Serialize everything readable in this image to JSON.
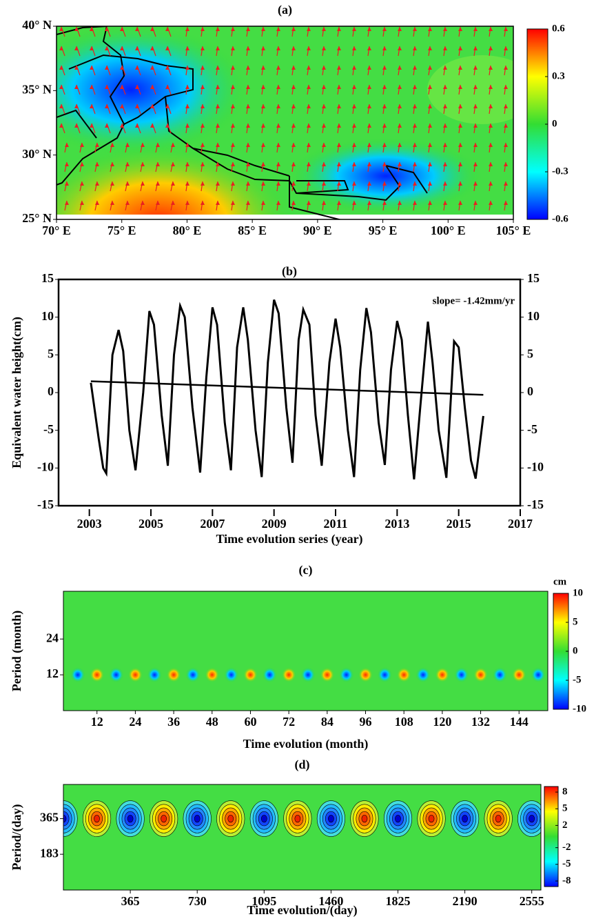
{
  "chart_data": [
    {
      "type": "map",
      "title": "(a)",
      "xlim": [
        70,
        105
      ],
      "ylim": [
        25,
        40
      ],
      "xticks": [
        {
          "value": 70,
          "label": "70° E"
        },
        {
          "value": 75,
          "label": "75° E"
        },
        {
          "value": 80,
          "label": "80° E"
        },
        {
          "value": 85,
          "label": "85° E"
        },
        {
          "value": 90,
          "label": "90° E"
        },
        {
          "value": 95,
          "label": "95° E"
        },
        {
          "value": 100,
          "label": "100° E"
        },
        {
          "value": 105,
          "label": "105° E"
        }
      ],
      "yticks": [
        {
          "value": 25,
          "label": "25° N"
        },
        {
          "value": 30,
          "label": "30° N"
        },
        {
          "value": 35,
          "label": "35° N"
        },
        {
          "value": 40,
          "label": "40° N"
        }
      ],
      "cbar_lim": [
        -0.6,
        0.6
      ],
      "cbar_ticks": [
        0.6,
        0.3,
        0,
        -0.3,
        -0.6
      ]
    },
    {
      "type": "line",
      "title": "(b)",
      "ylabel": "Equivalent water height(cm)",
      "xlabel": "Time evolution series (year)",
      "annotation": "slope= -1.42mm/yr",
      "color": "#000000",
      "x": [
        2003.05,
        2003.3,
        2003.45,
        2003.55,
        2003.75,
        2003.95,
        2004.1,
        2004.3,
        2004.5,
        2004.75,
        2004.95,
        2005.1,
        2005.35,
        2005.55,
        2005.75,
        2005.95,
        2006.1,
        2006.35,
        2006.6,
        2006.8,
        2007.0,
        2007.15,
        2007.4,
        2007.6,
        2007.8,
        2008.0,
        2008.15,
        2008.4,
        2008.6,
        2008.8,
        2009.0,
        2009.15,
        2009.4,
        2009.6,
        2009.8,
        2009.95,
        2010.15,
        2010.35,
        2010.55,
        2010.8,
        2011.0,
        2011.15,
        2011.4,
        2011.6,
        2011.8,
        2012.0,
        2012.15,
        2012.4,
        2012.6,
        2012.8,
        2013.0,
        2013.15,
        2013.35,
        2013.55,
        2013.75,
        2014.0,
        2014.15,
        2014.35,
        2014.6,
        2014.85,
        2015.0,
        2015.2,
        2015.4,
        2015.55,
        2015.8
      ],
      "values": [
        1.3,
        -6,
        -10,
        -10.7,
        5,
        8.3,
        5.5,
        -5,
        -10.3,
        0,
        10.8,
        9,
        -3,
        -9.7,
        5,
        11.5,
        10,
        -2,
        -10.6,
        2,
        11.3,
        9,
        -4,
        -10.3,
        6,
        11.3,
        7,
        -5,
        -11.2,
        4,
        12.3,
        10.5,
        -2,
        -9.3,
        7,
        11,
        9,
        -3,
        -9.7,
        4,
        9.8,
        6,
        -5,
        -11.2,
        3,
        11.2,
        8,
        -4,
        -9.6,
        3,
        9.5,
        7,
        -3,
        -11.5,
        -2,
        9.4,
        4,
        -5,
        -11.3,
        6.8,
        6,
        -2,
        -9,
        -11.4,
        -3.1
      ],
      "trend": {
        "x": [
          2003.05,
          2015.8
        ],
        "values": [
          1.5,
          -0.3
        ]
      },
      "xlim": [
        2002,
        2017
      ],
      "xticks": [
        2003,
        2005,
        2007,
        2009,
        2011,
        2013,
        2015,
        2017
      ],
      "ylim": [
        -15,
        15
      ],
      "yticks": [
        -15,
        -10,
        -5,
        0,
        5,
        10,
        15
      ],
      "y2lim": [
        -15,
        15
      ],
      "y2ticks": [
        -15,
        -10,
        -5,
        0,
        5,
        10,
        15
      ]
    },
    {
      "type": "heatmap",
      "title": "(c)",
      "ylabel": "Period (month)",
      "xlabel": "Time evolution (month)",
      "cbar_unit": "cm",
      "xlim": [
        1.5,
        153
      ],
      "xticks": [
        12,
        24,
        36,
        48,
        60,
        72,
        84,
        96,
        108,
        120,
        132,
        144
      ],
      "ylim": [
        0,
        40
      ],
      "yticks": [
        12,
        24
      ],
      "cbar_lim": [
        -10,
        10
      ],
      "cbar_ticks": [
        10,
        5,
        0,
        -5,
        -10
      ]
    },
    {
      "type": "heatmap",
      "title": "(d)",
      "ylabel": "Period/(day)",
      "xlabel": "Time evolution/(day)",
      "xlim": [
        0,
        2605
      ],
      "xticks": [
        365,
        730,
        1095,
        1460,
        1825,
        2190,
        2555
      ],
      "ylim": [
        0,
        540
      ],
      "yticks": [
        365,
        183
      ],
      "cbar_lim": [
        -9,
        9
      ],
      "cbar_ticks": [
        8,
        5,
        2,
        -2,
        -5,
        -8
      ]
    }
  ]
}
